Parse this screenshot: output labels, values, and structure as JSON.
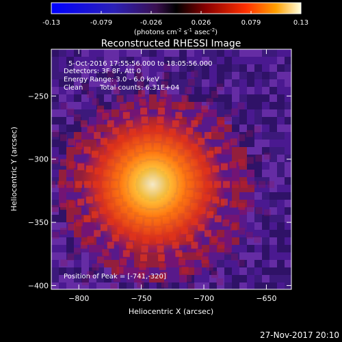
{
  "colorbar": {
    "ticks": [
      "-0.13",
      "-0.079",
      "-0.026",
      "0.026",
      "0.079",
      "0.13"
    ],
    "unit_label": "(photons cm",
    "unit_exp1": "-2",
    "unit_mid": " s",
    "unit_exp2": "-1",
    "unit_tail": " asec",
    "unit_exp3": "-2",
    "unit_close": ")"
  },
  "title": "Reconstructed RHESSI Image",
  "info": {
    "time_range": "5-Oct-2016 17:55:56.000 to 18:05:56.000",
    "detectors": "Detectors: 3F 8F, Att 0",
    "energy_range": "Energy Range: 3.0 - 6.0 keV",
    "method": "Clean",
    "total_counts": "Total counts: 6.31E+04"
  },
  "peak_label": "Position of Peak = [-741,-320]",
  "axes": {
    "xlabel": "Heliocentric X (arcsec)",
    "ylabel": "Heliocentric Y (arcsec)",
    "xticks": [
      {
        "value": -800,
        "label": "−800"
      },
      {
        "value": -750,
        "label": "−750"
      },
      {
        "value": -700,
        "label": "−700"
      },
      {
        "value": -650,
        "label": "−650"
      }
    ],
    "yticks": [
      {
        "value": -250,
        "label": "−250"
      },
      {
        "value": -300,
        "label": "−300"
      },
      {
        "value": -350,
        "label": "−350"
      },
      {
        "value": -400,
        "label": "−400"
      }
    ],
    "xlim": [
      -822,
      -630
    ],
    "ylim": [
      -403,
      -213
    ]
  },
  "source": {
    "x": -741,
    "y": -320
  },
  "colormap": [
    "#000000",
    "#3a0a5c",
    "#7a1a8a",
    "#c0202a",
    "#ff4a10",
    "#ffb020",
    "#ffffd0"
  ],
  "footer_date": "27-Nov-2017 20:10"
}
